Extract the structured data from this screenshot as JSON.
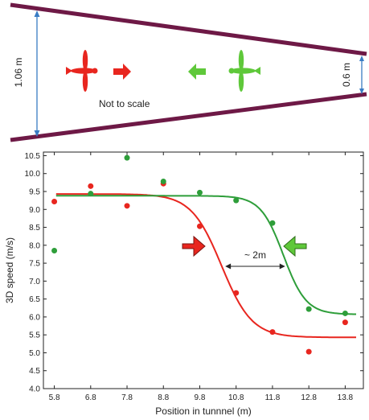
{
  "diagram": {
    "width_label": "1.06 m",
    "exit_label": "0.6 m",
    "scale_note": "Not to scale",
    "wall_color": "#6e1946",
    "dimension_color": "#3a7cc4",
    "forward_color": "#e8261f",
    "backward_color": "#5fc83a"
  },
  "chart_data": {
    "type": "scatter",
    "xlabel": "Position in tunnnel (m)",
    "ylabel": "3D speed (m/s)",
    "xlim": [
      5.5,
      14.3
    ],
    "ylim": [
      4.0,
      10.6
    ],
    "x_ticks": [
      "5.8",
      "6.8",
      "7.8",
      "8.8",
      "9.8",
      "10.8",
      "11.8",
      "12.8",
      "13.8"
    ],
    "y_ticks": [
      "4.0",
      "4.5",
      "5.0",
      "5.5",
      "6.0",
      "6.5",
      "7.0",
      "7.5",
      "8.0",
      "8.5",
      "9.0",
      "9.5",
      "10.0",
      "10.5"
    ],
    "grid": false,
    "annotation": "~ 2m",
    "annotation_span": [
      10.5,
      12.15
    ],
    "series": [
      {
        "color": "#e8261f",
        "direction": "forward",
        "points": [
          [
            5.8,
            9.22
          ],
          [
            6.8,
            9.65
          ],
          [
            7.8,
            9.1
          ],
          [
            8.8,
            9.72
          ],
          [
            9.8,
            8.53
          ],
          [
            10.8,
            6.67
          ],
          [
            11.8,
            5.58
          ],
          [
            12.8,
            5.03
          ],
          [
            13.8,
            5.85
          ]
        ],
        "fit": {
          "high": 9.43,
          "low": 5.43,
          "midpoint": 10.4,
          "slope": 2.4
        }
      },
      {
        "color": "#2e9e3a",
        "direction": "backward",
        "points": [
          [
            5.8,
            7.85
          ],
          [
            6.8,
            9.44
          ],
          [
            7.8,
            10.44
          ],
          [
            8.8,
            9.78
          ],
          [
            9.8,
            9.47
          ],
          [
            10.8,
            9.25
          ],
          [
            11.8,
            8.62
          ],
          [
            12.8,
            6.22
          ],
          [
            13.8,
            6.1
          ]
        ],
        "fit": {
          "high": 9.38,
          "low": 6.07,
          "midpoint": 12.1,
          "slope": 3.2
        }
      }
    ]
  }
}
